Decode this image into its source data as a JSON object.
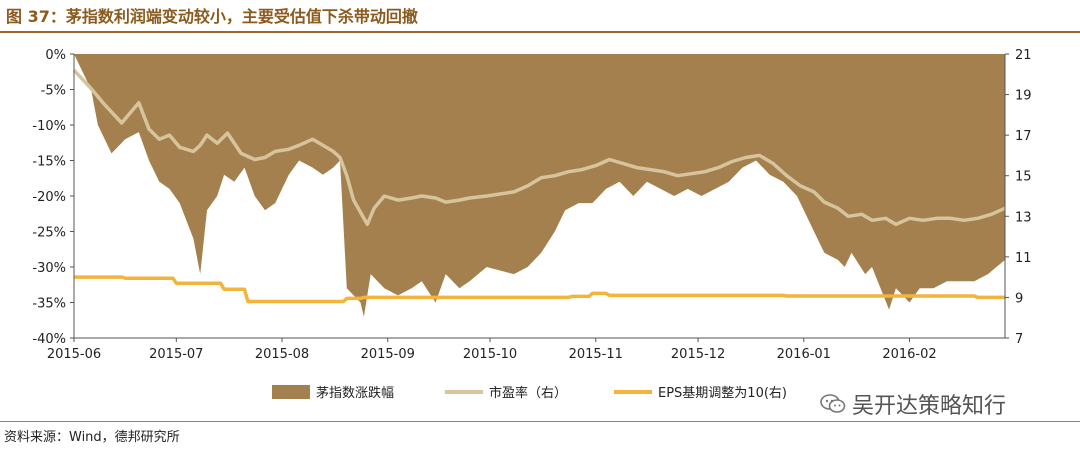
{
  "figure": {
    "title": "图 37：茅指数利润端变动较小，主要受估值下杀带动回撤",
    "source": "资料来源：Wind，德邦研究所",
    "watermark": "吴开达策略知行"
  },
  "colors": {
    "area": "#a4804f",
    "pe_line": "#d6c49c",
    "eps_line": "#f2b43d",
    "title": "#8c5a1e"
  },
  "chart_data": {
    "type": "area",
    "x_ticks": [
      "2015-06",
      "2015-07",
      "2015-08",
      "2015-09",
      "2015-10",
      "2015-11",
      "2015-12",
      "2016-01",
      "2016-02"
    ],
    "y_left_ticks": [
      "0%",
      "-5%",
      "-10%",
      "-15%",
      "-20%",
      "-25%",
      "-30%",
      "-35%",
      "-40%"
    ],
    "y_left_range": [
      -40,
      0
    ],
    "y_right_ticks": [
      "21",
      "19",
      "17",
      "15",
      "13",
      "11",
      "9",
      "7"
    ],
    "y_right_range": [
      7,
      21
    ],
    "x_range": [
      "2015-06-01",
      "2016-02-29"
    ],
    "legend": [
      "茅指数涨跌幅",
      "市盈率（右）",
      "EPS基期调整为10(右)"
    ],
    "legend_placement": "bottom",
    "series": [
      {
        "name": "茅指数涨跌幅",
        "axis": "left",
        "kind": "area",
        "x": [
          "2015-06-01",
          "2015-06-06",
          "2015-06-08",
          "2015-06-12",
          "2015-06-16",
          "2015-06-20",
          "2015-06-23",
          "2015-06-26",
          "2015-06-29",
          "2015-07-02",
          "2015-07-06",
          "2015-07-08",
          "2015-07-10",
          "2015-07-13",
          "2015-07-15",
          "2015-07-18",
          "2015-07-21",
          "2015-07-24",
          "2015-07-27",
          "2015-07-30",
          "2015-08-03",
          "2015-08-06",
          "2015-08-10",
          "2015-08-13",
          "2015-08-16",
          "2015-08-18",
          "2015-08-20",
          "2015-08-24",
          "2015-08-25",
          "2015-08-27",
          "2015-08-31",
          "2015-09-04",
          "2015-09-08",
          "2015-09-11",
          "2015-09-15",
          "2015-09-18",
          "2015-09-22",
          "2015-09-25",
          "2015-09-30",
          "2015-10-08",
          "2015-10-12",
          "2015-10-16",
          "2015-10-20",
          "2015-10-23",
          "2015-10-27",
          "2015-10-31",
          "2015-11-04",
          "2015-11-08",
          "2015-11-12",
          "2015-11-16",
          "2015-11-20",
          "2015-11-24",
          "2015-11-28",
          "2015-12-02",
          "2015-12-06",
          "2015-12-10",
          "2015-12-14",
          "2015-12-18",
          "2015-12-22",
          "2015-12-26",
          "2015-12-30",
          "2016-01-04",
          "2016-01-07",
          "2016-01-11",
          "2016-01-13",
          "2016-01-15",
          "2016-01-19",
          "2016-01-21",
          "2016-01-26",
          "2016-01-28",
          "2016-02-01",
          "2016-02-04",
          "2016-02-08",
          "2016-02-12",
          "2016-02-16",
          "2016-02-20",
          "2016-02-24",
          "2016-02-29"
        ],
        "values": [
          0,
          -5,
          -10,
          -14,
          -12,
          -11,
          -15,
          -18,
          -19,
          -21,
          -26,
          -31,
          -22,
          -20,
          -17,
          -18,
          -16,
          -20,
          -22,
          -21,
          -17,
          -15,
          -16,
          -17,
          -16,
          -15,
          -33,
          -35,
          -37,
          -31,
          -33,
          -34,
          -33,
          -32,
          -35,
          -31,
          -33,
          -32,
          -30,
          -31,
          -30,
          -28,
          -25,
          -22,
          -21,
          -21,
          -19,
          -18,
          -20,
          -18,
          -19,
          -20,
          -19,
          -20,
          -19,
          -18,
          -16,
          -15,
          -17,
          -18,
          -20,
          -25,
          -28,
          -29,
          -30,
          -28,
          -31,
          -30,
          -36,
          -33,
          -35,
          -33,
          -33,
          -32,
          -32,
          -32,
          -31,
          -29
        ]
      },
      {
        "name": "市盈率（右）",
        "axis": "right",
        "kind": "line",
        "x": [
          "2015-06-01",
          "2015-06-06",
          "2015-06-10",
          "2015-06-15",
          "2015-06-20",
          "2015-06-23",
          "2015-06-26",
          "2015-06-29",
          "2015-07-02",
          "2015-07-06",
          "2015-07-08",
          "2015-07-10",
          "2015-07-13",
          "2015-07-16",
          "2015-07-20",
          "2015-07-24",
          "2015-07-27",
          "2015-07-30",
          "2015-08-03",
          "2015-08-06",
          "2015-08-10",
          "2015-08-13",
          "2015-08-16",
          "2015-08-18",
          "2015-08-20",
          "2015-08-22",
          "2015-08-24",
          "2015-08-26",
          "2015-08-28",
          "2015-08-31",
          "2015-09-04",
          "2015-09-08",
          "2015-09-11",
          "2015-09-15",
          "2015-09-18",
          "2015-09-22",
          "2015-09-25",
          "2015-09-30",
          "2015-10-08",
          "2015-10-12",
          "2015-10-16",
          "2015-10-20",
          "2015-10-24",
          "2015-10-28",
          "2015-11-01",
          "2015-11-05",
          "2015-11-09",
          "2015-11-13",
          "2015-11-17",
          "2015-11-21",
          "2015-11-25",
          "2015-11-29",
          "2015-12-03",
          "2015-12-07",
          "2015-12-11",
          "2015-12-15",
          "2015-12-19",
          "2015-12-23",
          "2015-12-27",
          "2015-12-31",
          "2016-01-04",
          "2016-01-07",
          "2016-01-11",
          "2016-01-14",
          "2016-01-18",
          "2016-01-21",
          "2016-01-25",
          "2016-01-28",
          "2016-02-01",
          "2016-02-05",
          "2016-02-09",
          "2016-02-13",
          "2016-02-17",
          "2016-02-21",
          "2016-02-25",
          "2016-02-29"
        ],
        "values": [
          20.2,
          19.3,
          18.5,
          17.6,
          18.6,
          17.3,
          16.8,
          17.0,
          16.4,
          16.2,
          16.5,
          17.0,
          16.6,
          17.1,
          16.1,
          15.8,
          15.9,
          16.2,
          16.3,
          16.5,
          16.8,
          16.5,
          16.2,
          15.9,
          15.0,
          13.8,
          13.2,
          12.6,
          13.4,
          14.0,
          13.8,
          13.9,
          14.0,
          13.9,
          13.7,
          13.8,
          13.9,
          14.0,
          14.2,
          14.5,
          14.9,
          15.0,
          15.2,
          15.3,
          15.5,
          15.8,
          15.6,
          15.4,
          15.3,
          15.2,
          15.0,
          15.1,
          15.2,
          15.4,
          15.7,
          15.9,
          16.0,
          15.6,
          15.0,
          14.5,
          14.2,
          13.7,
          13.4,
          13.0,
          13.1,
          12.8,
          12.9,
          12.6,
          12.9,
          12.8,
          12.9,
          12.9,
          12.8,
          12.9,
          13.1,
          13.4
        ]
      },
      {
        "name": "EPS基期调整为10(右)",
        "axis": "right",
        "kind": "line",
        "x": [
          "2015-06-01",
          "2015-06-15",
          "2015-06-16",
          "2015-06-30",
          "2015-07-01",
          "2015-07-14",
          "2015-07-15",
          "2015-07-21",
          "2015-07-22",
          "2015-08-19",
          "2015-08-20",
          "2015-08-24",
          "2015-08-25",
          "2015-10-24",
          "2015-10-25",
          "2015-10-30",
          "2015-10-31",
          "2015-11-04",
          "2015-11-05",
          "2015-12-26",
          "2015-12-27",
          "2016-02-20",
          "2016-02-21",
          "2016-02-29"
        ],
        "values": [
          10.0,
          10.0,
          9.95,
          9.95,
          9.7,
          9.7,
          9.4,
          9.4,
          8.8,
          8.8,
          8.95,
          8.95,
          9.0,
          9.0,
          9.05,
          9.05,
          9.2,
          9.2,
          9.1,
          9.1,
          9.07,
          9.07,
          9.0,
          9.0
        ]
      }
    ]
  }
}
